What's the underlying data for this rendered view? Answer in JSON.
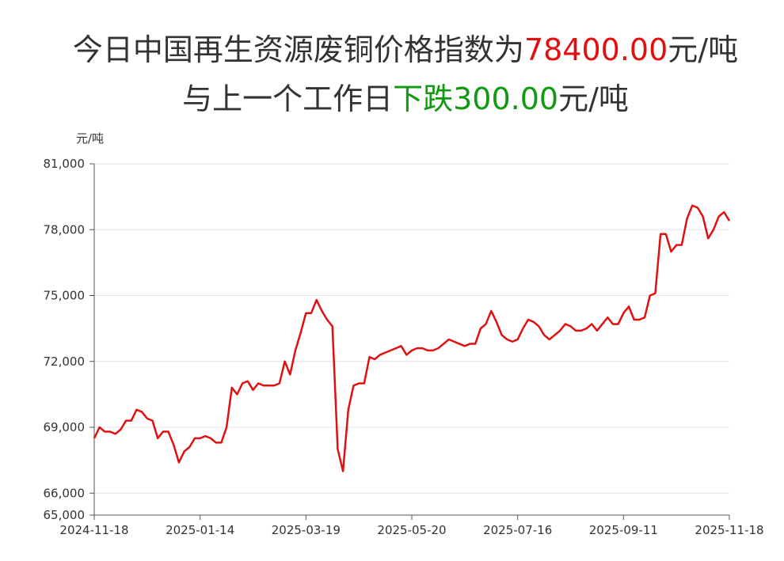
{
  "chart_data": {
    "type": "line",
    "title_parts": [
      "今日中国再生资源废铜价格指数为",
      "78400.00",
      "元/吨"
    ],
    "subtitle_parts": [
      "与上一个工作日",
      "下跌300.00",
      "元/吨"
    ],
    "y_axis_label": "元/吨",
    "categories": [
      "2024-11-18",
      null,
      null,
      null,
      null,
      null,
      null,
      null,
      null,
      null,
      null,
      null,
      null,
      null,
      null,
      null,
      null,
      null,
      null,
      null,
      "2025-01-14",
      null,
      null,
      null,
      null,
      null,
      null,
      null,
      null,
      null,
      null,
      null,
      null,
      null,
      null,
      null,
      null,
      null,
      null,
      null,
      "2025-03-19",
      null,
      null,
      null,
      null,
      null,
      null,
      null,
      null,
      null,
      null,
      null,
      null,
      null,
      null,
      null,
      null,
      null,
      null,
      null,
      "2025-05-20",
      null,
      null,
      null,
      null,
      null,
      null,
      null,
      null,
      null,
      null,
      null,
      null,
      null,
      null,
      null,
      null,
      null,
      null,
      null,
      "2025-07-16",
      null,
      null,
      null,
      null,
      null,
      null,
      null,
      null,
      null,
      null,
      null,
      null,
      null,
      null,
      null,
      null,
      null,
      null,
      null,
      "2025-09-11",
      null,
      null,
      null,
      null,
      null,
      null,
      null,
      null,
      null,
      null,
      null,
      null,
      null,
      null,
      null,
      null,
      null,
      null,
      null,
      "2025-11-18"
    ],
    "series": [
      {
        "color": "#e01010",
        "values": [
          68500,
          69000,
          68800,
          68800,
          68700,
          68900,
          69300,
          69300,
          69800,
          69700,
          69400,
          69300,
          68500,
          68800,
          68800,
          68200,
          67400,
          67900,
          68100,
          68500,
          68500,
          68600,
          68500,
          68300,
          68300,
          69000,
          70800,
          70500,
          71000,
          71100,
          70700,
          71000,
          70900,
          70900,
          70900,
          71000,
          72000,
          71400,
          72500,
          73300,
          74200,
          74200,
          74800,
          74300,
          73900,
          73600,
          68000,
          67000,
          69800,
          70900,
          71000,
          71000,
          72200,
          72100,
          72300,
          72400,
          72500,
          72600,
          72700,
          72300,
          72500,
          72600,
          72600,
          72500,
          72500,
          72600,
          72800,
          73000,
          72900,
          72800,
          72700,
          72800,
          72800,
          73500,
          73700,
          74300,
          73800,
          73200,
          73000,
          72900,
          73000,
          73500,
          73900,
          73800,
          73600,
          73200,
          73000,
          73200,
          73400,
          73700,
          73600,
          73400,
          73400,
          73500,
          73700,
          73400,
          73700,
          74000,
          73700,
          73700,
          74200,
          74500,
          73900,
          73900,
          74000,
          75000,
          75100,
          77800,
          77800,
          77000,
          77300,
          77300,
          78500,
          79100,
          79000,
          78600,
          77600,
          78000,
          78600,
          78800,
          78400
        ]
      }
    ],
    "ylim": [
      65000,
      81000
    ],
    "yticks": [
      {
        "value": 65000,
        "label": "65,000"
      },
      {
        "value": 66000,
        "label": "66,000"
      },
      {
        "value": 69000,
        "label": "69,000"
      },
      {
        "value": 72000,
        "label": "72,000"
      },
      {
        "value": 75000,
        "label": "75,000"
      },
      {
        "value": 78000,
        "label": "78,000"
      },
      {
        "value": 81000,
        "label": "81,000"
      }
    ],
    "grid": true
  }
}
